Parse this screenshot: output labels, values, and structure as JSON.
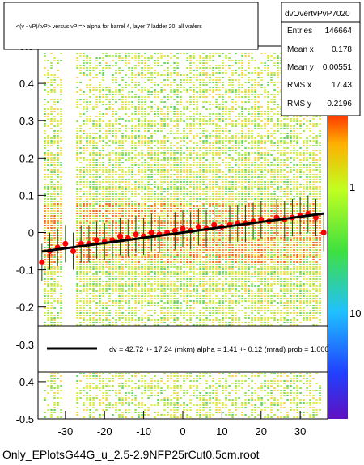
{
  "chart_data": {
    "type": "scatter",
    "title": "<(v - vP)/tvP> versus vP => alpha for barrel 4, layer 7 ladder 20, all wafers",
    "xlim": [
      -37,
      37
    ],
    "ylim": [
      -0.5,
      0.5
    ],
    "x_ticks": [
      "-30",
      "-20",
      "-10",
      "0",
      "10",
      "20",
      "30"
    ],
    "y_ticks": [
      "-0.5",
      "-0.4",
      "-0.3",
      "-0.2",
      "-0.1",
      "0",
      "0.1",
      "0.2",
      "0.3",
      "0.4",
      "0.5"
    ],
    "z_scale": "log",
    "z_ticks": [
      "1",
      "10"
    ],
    "series": [
      {
        "x": [
          -36,
          -34,
          -32,
          -30,
          -28,
          -26,
          -24,
          -22,
          -20,
          -18,
          -16,
          -14,
          -12,
          -10,
          -8,
          -6,
          -4,
          -2,
          0,
          2,
          4,
          6,
          8,
          10,
          12,
          14,
          16,
          18,
          20,
          22,
          24,
          26,
          28,
          30,
          32,
          34,
          36
        ],
        "y": [
          -0.08,
          -0.05,
          -0.04,
          -0.03,
          -0.05,
          -0.03,
          -0.03,
          -0.02,
          -0.025,
          -0.02,
          -0.01,
          -0.015,
          -0.005,
          -0.01,
          0.0,
          -0.005,
          0.0,
          0.005,
          0.01,
          0.005,
          0.015,
          0.01,
          0.02,
          0.015,
          0.02,
          0.025,
          0.025,
          0.03,
          0.035,
          0.03,
          0.04,
          0.035,
          0.04,
          0.045,
          0.05,
          0.04,
          0.0
        ]
      }
    ],
    "fit": {
      "slope": 0.00141,
      "intercept": 0.0
    }
  },
  "stats": {
    "name": "dvOvertvPvP7020",
    "rows": [
      {
        "label": "Entries",
        "value": "146664"
      },
      {
        "label": "Mean x",
        "value": "0.178"
      },
      {
        "label": "Mean y",
        "value": "0.00551"
      },
      {
        "label": "RMS x",
        "value": "17.43"
      },
      {
        "label": "RMS y",
        "value": "0.2196"
      }
    ]
  },
  "fit_legend": {
    "text": "dv =    42.72 +- 17.24 (mkm) alpha =    1.41 +- 0.12 (mrad) prob = 1.000"
  },
  "footer": "Only_EPlotsG44G_u_2.5-2.9NFP25rCut0.5cm.root",
  "colors": {
    "background_fill": "#7fe040",
    "points": "#ff0000",
    "fit_line": "#000000"
  }
}
